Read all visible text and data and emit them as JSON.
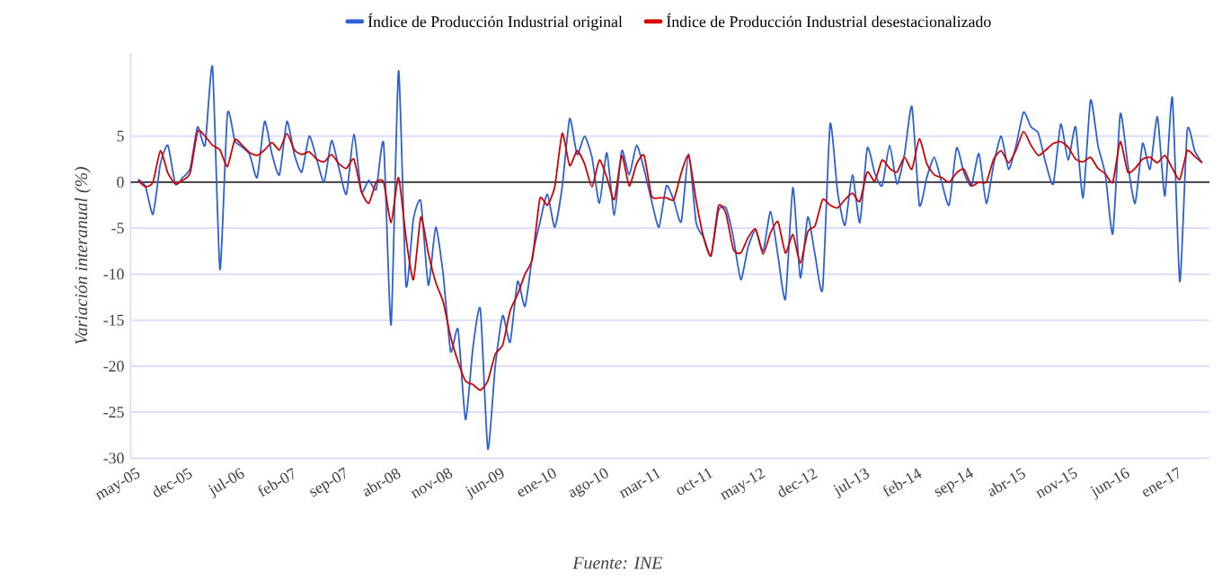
{
  "chart_data": {
    "type": "line",
    "categories": [
      "may-05",
      null,
      null,
      null,
      null,
      null,
      null,
      "dec-05",
      null,
      null,
      null,
      null,
      null,
      null,
      "jul-06",
      null,
      null,
      null,
      null,
      null,
      null,
      "feb-07",
      null,
      null,
      null,
      null,
      null,
      null,
      "sep-07",
      null,
      null,
      null,
      null,
      null,
      null,
      "abr-08",
      null,
      null,
      null,
      null,
      null,
      null,
      "nov-08",
      null,
      null,
      null,
      null,
      null,
      null,
      "jun-09",
      null,
      null,
      null,
      null,
      null,
      null,
      "ene-10",
      null,
      null,
      null,
      null,
      null,
      null,
      "ago-10",
      null,
      null,
      null,
      null,
      null,
      null,
      "mar-11",
      null,
      null,
      null,
      null,
      null,
      null,
      "oct-11",
      null,
      null,
      null,
      null,
      null,
      null,
      "may-12",
      null,
      null,
      null,
      null,
      null,
      null,
      "dec-12",
      null,
      null,
      null,
      null,
      null,
      null,
      "jul-13",
      null,
      null,
      null,
      null,
      null,
      null,
      "feb-14",
      null,
      null,
      null,
      null,
      null,
      null,
      "sep-14",
      null,
      null,
      null,
      null,
      null,
      null,
      "abr-15",
      null,
      null,
      null,
      null,
      null,
      null,
      "nov-15",
      null,
      null,
      null,
      null,
      null,
      null,
      "jun-16",
      null,
      null,
      null,
      null,
      null,
      null,
      "ene-17",
      null,
      null,
      null
    ],
    "series": [
      {
        "name": "Índice de Producción Industrial original",
        "color": "#2a5fd6",
        "values": [
          0.3,
          -0.5,
          -3.5,
          2,
          4,
          -0.2,
          0.5,
          1.5,
          6,
          4,
          12.5,
          -9.5,
          7.4,
          4.5,
          3.8,
          3,
          0.5,
          6.6,
          3,
          0.8,
          6.6,
          3,
          1.1,
          5,
          2.5,
          0,
          4.5,
          1.5,
          -1.3,
          5.2,
          -1,
          0.2,
          -0.8,
          4.2,
          -15.5,
          12.1,
          -11.2,
          -4,
          -2.1,
          -11.2,
          -4.9,
          -10,
          -18.4,
          -16,
          -25.8,
          -18,
          -13.8,
          -29,
          -20,
          -14.5,
          -17.4,
          -10.8,
          -13.5,
          -8,
          -4.4,
          -1.3,
          -4.9,
          -0.5,
          6.9,
          3,
          5,
          2.7,
          -2.3,
          3.2,
          -3.6,
          3.4,
          0.8,
          4,
          1.4,
          -2,
          -4.9,
          -0.4,
          -2,
          -4.3,
          3.1,
          -4.4,
          -6,
          -8,
          -3.1,
          -2.8,
          -6,
          -10.6,
          -7,
          -5.2,
          -7.5,
          -3.2,
          -8,
          -12.7,
          -0.6,
          -10.4,
          -3.8,
          -8,
          -11.6,
          6.3,
          -1,
          -4.7,
          0.8,
          -4.4,
          3.7,
          1,
          -0.4,
          4,
          -0.2,
          3,
          8.2,
          -2.5,
          0.5,
          2.7,
          0,
          -2.5,
          3.7,
          1,
          -0.4,
          3.1,
          -2.3,
          2,
          5,
          1.4,
          4,
          7.6,
          6,
          5.3,
          2,
          -0.2,
          6.3,
          2.4,
          6,
          -1.7,
          8.9,
          4,
          0.8,
          -5.6,
          7.4,
          2,
          -2.3,
          4.2,
          1.4,
          7.1,
          -1.5,
          9.2,
          -10.8,
          5.6,
          3.4,
          2.1
        ]
      },
      {
        "name": "Índice de Producción Industrial desestacionalizado",
        "color": "#d40000",
        "values": [
          0.2,
          -0.5,
          0,
          3.4,
          1,
          -0.2,
          0.2,
          1,
          5.5,
          5,
          4,
          3.5,
          1.7,
          4.6,
          4,
          3.2,
          2.9,
          3.5,
          4.3,
          3.5,
          5.3,
          3.5,
          3,
          3.3,
          2.5,
          2.2,
          3,
          2,
          1.5,
          2.5,
          -1,
          -2.3,
          0,
          0,
          -4.4,
          0.5,
          -6,
          -10.6,
          -3.8,
          -7.7,
          -10.9,
          -13,
          -16.8,
          -19.5,
          -21.6,
          -22,
          -22.6,
          -21.6,
          -18.7,
          -17.7,
          -14,
          -12.2,
          -10,
          -8.3,
          -1.8,
          -2.5,
          -0.5,
          5.3,
          1.8,
          3.4,
          2,
          -0.5,
          2.4,
          0.5,
          -1.9,
          2.9,
          -0.4,
          2,
          2.9,
          -1.5,
          -1.7,
          -1.7,
          -1.9,
          1,
          2.9,
          -2,
          -6,
          -8,
          -2.6,
          -3.4,
          -7.3,
          -7.7,
          -6,
          -5.1,
          -7.8,
          -5.5,
          -4.3,
          -7.7,
          -5.7,
          -8.8,
          -5.4,
          -4.7,
          -1.9,
          -2.5,
          -2.8,
          -1.9,
          -1.2,
          -2.1,
          1.1,
          0.1,
          2.4,
          1.5,
          1.1,
          2.7,
          1.4,
          4.7,
          2,
          0.8,
          0.5,
          0,
          1,
          1.4,
          -0.4,
          0,
          0,
          2.5,
          3.4,
          2.1,
          3.5,
          5.5,
          4,
          2.9,
          3.5,
          4.2,
          4.4,
          3.8,
          2.5,
          2.2,
          2.7,
          1.5,
          0.9,
          0,
          4.4,
          1.1,
          1.5,
          2.5,
          2.7,
          2.1,
          2.9,
          1.5,
          0.3,
          3.4,
          2.8,
          2.1
        ]
      }
    ],
    "ylabel": "Variación interanual (%)",
    "ylim": [
      -30,
      14
    ],
    "yticks": [
      -30,
      -25,
      -20,
      -15,
      -10,
      -5,
      0,
      5
    ],
    "ref_lines": [
      {
        "axis": "y",
        "value": 0,
        "color": "#333333"
      }
    ],
    "grid": "y",
    "legend": "top",
    "line_style": "solid",
    "marker": "none",
    "annotations": [
      "Fuente: INE"
    ]
  }
}
